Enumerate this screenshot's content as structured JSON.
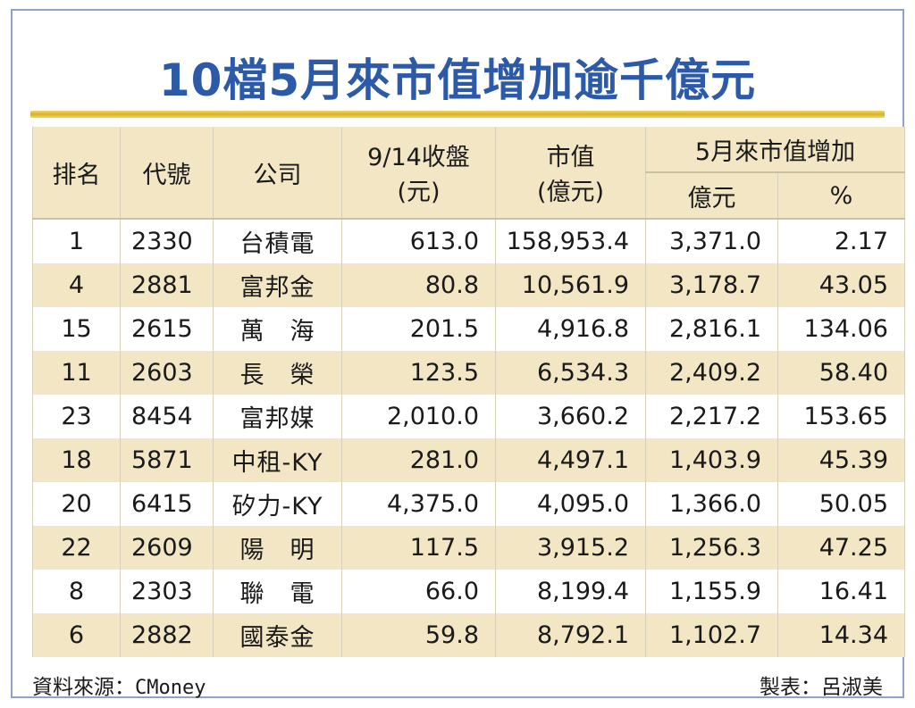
{
  "title": "10檔5月來市值增加逾千億元",
  "headers": {
    "rank": "排名",
    "code": "代號",
    "company": "公司",
    "close_line1": "9/14收盤",
    "close_line2": "(元)",
    "mktcap_line1": "市值",
    "mktcap_line2": "(億元)",
    "increase_group": "5月來市值增加",
    "increase_amount": "億元",
    "increase_pct": "%"
  },
  "rows": [
    {
      "rank": "1",
      "code": "2330",
      "company": "台積電",
      "close": "613.0",
      "mktcap": "158,953.4",
      "inc": "3,371.0",
      "pct": "2.17"
    },
    {
      "rank": "4",
      "code": "2881",
      "company": "富邦金",
      "close": "80.8",
      "mktcap": "10,561.9",
      "inc": "3,178.7",
      "pct": "43.05"
    },
    {
      "rank": "15",
      "code": "2615",
      "company": "萬　海",
      "close": "201.5",
      "mktcap": "4,916.8",
      "inc": "2,816.1",
      "pct": "134.06"
    },
    {
      "rank": "11",
      "code": "2603",
      "company": "長　榮",
      "close": "123.5",
      "mktcap": "6,534.3",
      "inc": "2,409.2",
      "pct": "58.40"
    },
    {
      "rank": "23",
      "code": "8454",
      "company": "富邦媒",
      "close": "2,010.0",
      "mktcap": "3,660.2",
      "inc": "2,217.2",
      "pct": "153.65"
    },
    {
      "rank": "18",
      "code": "5871",
      "company": "中租-KY",
      "close": "281.0",
      "mktcap": "4,497.1",
      "inc": "1,403.9",
      "pct": "45.39"
    },
    {
      "rank": "20",
      "code": "6415",
      "company": "矽力-KY",
      "close": "4,375.0",
      "mktcap": "4,095.0",
      "inc": "1,366.0",
      "pct": "50.05"
    },
    {
      "rank": "22",
      "code": "2609",
      "company": "陽　明",
      "close": "117.5",
      "mktcap": "3,915.2",
      "inc": "1,256.3",
      "pct": "47.25"
    },
    {
      "rank": "8",
      "code": "2303",
      "company": "聯　電",
      "close": "66.0",
      "mktcap": "8,199.4",
      "inc": "1,155.9",
      "pct": "16.41"
    },
    {
      "rank": "6",
      "code": "2882",
      "company": "國泰金",
      "close": "59.8",
      "mktcap": "8,792.1",
      "inc": "1,102.7",
      "pct": "14.34"
    }
  ],
  "footer": {
    "source_label": "資料來源：",
    "source_name": "CMoney",
    "credit": "製表：呂淑美"
  },
  "colors": {
    "title": "#2c59a8",
    "stripe": "#f2e6c4",
    "rule": "#d9b224",
    "frame": "#8fa3c8"
  }
}
